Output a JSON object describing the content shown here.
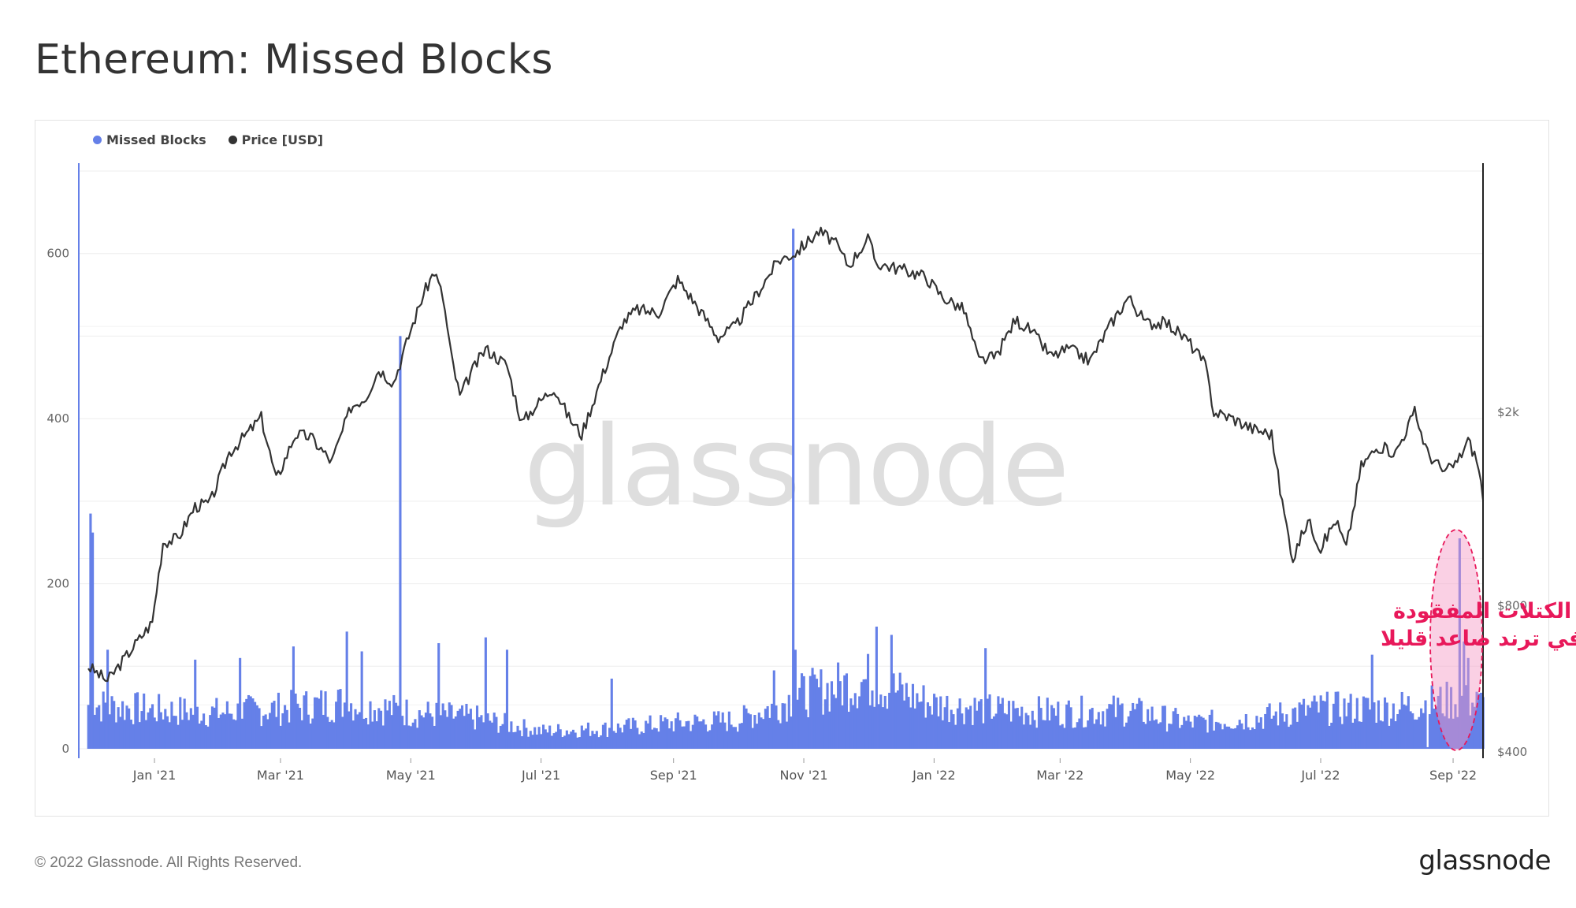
{
  "page": {
    "title": "Ethereum: Missed Blocks",
    "copyright": "© 2022 Glassnode. All Rights Reserved.",
    "logo": "glassnode",
    "watermark": "glassnode"
  },
  "legend": [
    {
      "label": "Missed Blocks",
      "color": "#6580e8"
    },
    {
      "label": "Price [USD]",
      "color": "#333333"
    }
  ],
  "annotation": {
    "line1": "عدد الكتلات المفقودة",
    "line2": "في ترند صاعد قليلا",
    "color": "#e8185a"
  },
  "chart_data": {
    "type": "bar",
    "x_range": [
      "2020-12-01",
      "2022-09-15"
    ],
    "x_ticks": [
      "Jan '21",
      "Mar '21",
      "May '21",
      "Jul '21",
      "Sep '21",
      "Nov '21",
      "Jan '22",
      "Mar '22",
      "May '22",
      "Jul '22",
      "Sep '22"
    ],
    "y_left": {
      "ticks": [
        "0",
        "200",
        "400",
        "600"
      ],
      "range": [
        0,
        700
      ]
    },
    "y_right": {
      "ticks": [
        "$400",
        "$800",
        "$2k"
      ],
      "scale": "log",
      "range": [
        400,
        6500
      ]
    },
    "series": [
      {
        "name": "Missed Blocks",
        "type": "bar",
        "axis": "left",
        "color": "#6580e8",
        "baseline": [
          [
            "2020-12-01",
            55
          ],
          [
            "2021-01-01",
            48
          ],
          [
            "2021-02-01",
            45
          ],
          [
            "2021-03-01",
            50
          ],
          [
            "2021-04-01",
            58
          ],
          [
            "2021-05-01",
            45
          ],
          [
            "2021-06-01",
            38
          ],
          [
            "2021-07-01",
            22
          ],
          [
            "2021-08-01",
            25
          ],
          [
            "2021-09-01",
            32
          ],
          [
            "2021-10-01",
            35
          ],
          [
            "2021-11-01",
            68
          ],
          [
            "2021-12-01",
            85
          ],
          [
            "2022-01-01",
            55
          ],
          [
            "2022-02-01",
            48
          ],
          [
            "2022-03-01",
            45
          ],
          [
            "2022-04-01",
            48
          ],
          [
            "2022-05-01",
            32
          ],
          [
            "2022-06-01",
            38
          ],
          [
            "2022-07-01",
            50
          ],
          [
            "2022-08-01",
            50
          ],
          [
            "2022-09-01",
            60
          ],
          [
            "2022-09-15",
            55
          ]
        ],
        "spikes": [
          [
            "2020-12-02",
            285
          ],
          [
            "2020-12-03",
            262
          ],
          [
            "2020-12-10",
            120
          ],
          [
            "2021-01-20",
            108
          ],
          [
            "2021-02-10",
            110
          ],
          [
            "2021-03-07",
            124
          ],
          [
            "2021-04-01",
            142
          ],
          [
            "2021-04-08",
            118
          ],
          [
            "2021-04-26",
            500
          ],
          [
            "2021-05-14",
            128
          ],
          [
            "2021-06-05",
            135
          ],
          [
            "2021-06-15",
            120
          ],
          [
            "2021-08-03",
            85
          ],
          [
            "2021-10-18",
            95
          ],
          [
            "2021-10-27",
            630
          ],
          [
            "2021-10-28",
            120
          ],
          [
            "2021-12-05",
            148
          ],
          [
            "2021-12-12",
            138
          ],
          [
            "2022-01-25",
            122
          ],
          [
            "2022-07-25",
            114
          ],
          [
            "2022-08-20",
            2
          ],
          [
            "2022-09-04",
            255
          ],
          [
            "2022-09-06",
            130
          ],
          [
            "2022-09-08",
            110
          ]
        ]
      },
      {
        "name": "Price [USD]",
        "type": "line",
        "axis": "right",
        "color": "#333333",
        "values": [
          [
            "2020-12-01",
            600
          ],
          [
            "2020-12-10",
            560
          ],
          [
            "2020-12-20",
            640
          ],
          [
            "2020-12-31",
            740
          ],
          [
            "2021-01-05",
            1080
          ],
          [
            "2021-01-12",
            1100
          ],
          [
            "2021-01-20",
            1280
          ],
          [
            "2021-01-27",
            1300
          ],
          [
            "2021-02-05",
            1650
          ],
          [
            "2021-02-12",
            1780
          ],
          [
            "2021-02-20",
            1950
          ],
          [
            "2021-02-27",
            1450
          ],
          [
            "2021-03-08",
            1800
          ],
          [
            "2021-03-15",
            1780
          ],
          [
            "2021-03-25",
            1580
          ],
          [
            "2021-04-03",
            2050
          ],
          [
            "2021-04-10",
            2150
          ],
          [
            "2021-04-16",
            2450
          ],
          [
            "2021-04-23",
            2300
          ],
          [
            "2021-05-01",
            2950
          ],
          [
            "2021-05-07",
            3500
          ],
          [
            "2021-05-12",
            3900
          ],
          [
            "2021-05-16",
            3450
          ],
          [
            "2021-05-20",
            2600
          ],
          [
            "2021-05-24",
            2150
          ],
          [
            "2021-05-29",
            2400
          ],
          [
            "2021-06-05",
            2700
          ],
          [
            "2021-06-15",
            2500
          ],
          [
            "2021-06-22",
            1900
          ],
          [
            "2021-06-28",
            2050
          ],
          [
            "2021-07-07",
            2250
          ],
          [
            "2021-07-14",
            1950
          ],
          [
            "2021-07-20",
            1800
          ],
          [
            "2021-07-30",
            2400
          ],
          [
            "2021-08-08",
            3050
          ],
          [
            "2021-08-15",
            3250
          ],
          [
            "2021-08-25",
            3200
          ],
          [
            "2021-09-03",
            3750
          ],
          [
            "2021-09-10",
            3400
          ],
          [
            "2021-09-22",
            2850
          ],
          [
            "2021-09-30",
            3000
          ],
          [
            "2021-10-10",
            3500
          ],
          [
            "2021-10-20",
            4100
          ],
          [
            "2021-10-28",
            4250
          ],
          [
            "2021-11-08",
            4700
          ],
          [
            "2021-11-15",
            4500
          ],
          [
            "2021-11-22",
            4000
          ],
          [
            "2021-12-01",
            4550
          ],
          [
            "2021-12-05",
            4050
          ],
          [
            "2021-12-10",
            4000
          ],
          [
            "2021-12-20",
            3900
          ],
          [
            "2021-12-28",
            3800
          ],
          [
            "2022-01-05",
            3450
          ],
          [
            "2022-01-15",
            3250
          ],
          [
            "2022-01-22",
            2550
          ],
          [
            "2022-01-30",
            2600
          ],
          [
            "2022-02-08",
            3100
          ],
          [
            "2022-02-15",
            2950
          ],
          [
            "2022-02-25",
            2600
          ],
          [
            "2022-03-05",
            2700
          ],
          [
            "2022-03-15",
            2550
          ],
          [
            "2022-03-25",
            3050
          ],
          [
            "2022-04-02",
            3450
          ],
          [
            "2022-04-10",
            3050
          ],
          [
            "2022-04-20",
            3050
          ],
          [
            "2022-04-30",
            2800
          ],
          [
            "2022-05-08",
            2500
          ],
          [
            "2022-05-12",
            2000
          ],
          [
            "2022-05-20",
            1950
          ],
          [
            "2022-05-30",
            1850
          ],
          [
            "2022-06-08",
            1800
          ],
          [
            "2022-06-13",
            1300
          ],
          [
            "2022-06-18",
            1000
          ],
          [
            "2022-06-25",
            1200
          ],
          [
            "2022-07-01",
            1050
          ],
          [
            "2022-07-08",
            1200
          ],
          [
            "2022-07-13",
            1050
          ],
          [
            "2022-07-20",
            1550
          ],
          [
            "2022-07-28",
            1700
          ],
          [
            "2022-08-05",
            1650
          ],
          [
            "2022-08-14",
            2000
          ],
          [
            "2022-08-20",
            1650
          ],
          [
            "2022-08-28",
            1500
          ],
          [
            "2022-09-03",
            1580
          ],
          [
            "2022-09-08",
            1750
          ],
          [
            "2022-09-12",
            1600
          ],
          [
            "2022-09-15",
            1350
          ]
        ]
      }
    ],
    "grid": true,
    "legend_position": "top-left"
  }
}
